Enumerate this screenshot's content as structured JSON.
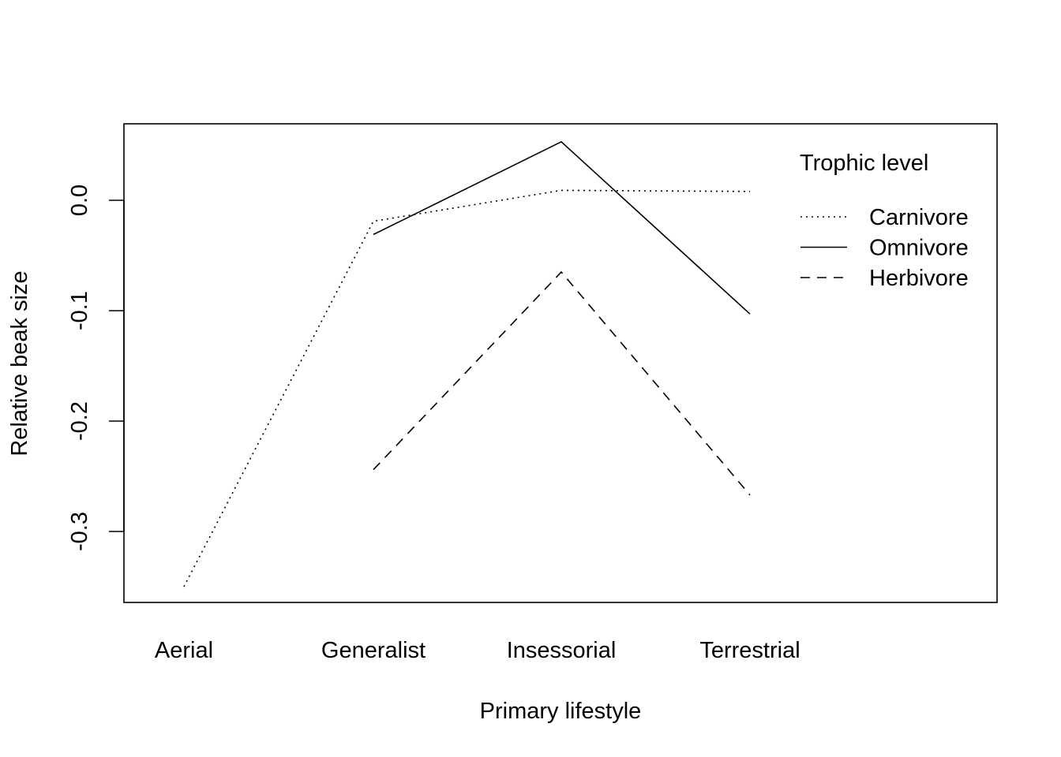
{
  "chart_data": {
    "type": "line",
    "xlabel": "Primary lifestyle",
    "ylabel": "Relative beak size",
    "categories": [
      "Aerial",
      "Generalist",
      "Insessorial",
      "Terrestrial"
    ],
    "yticks": [
      "0.0",
      "-0.1",
      "-0.2",
      "-0.3"
    ],
    "ytick_values": [
      0.0,
      -0.1,
      -0.2,
      -0.3
    ],
    "ylim": [
      -0.365,
      0.069
    ],
    "grid": false,
    "legend": {
      "title": "Trophic level",
      "position": "top-right"
    },
    "series": [
      {
        "name": "Carnivore",
        "linestyle": "dotted",
        "values": [
          -0.35,
          -0.019,
          0.009,
          0.008
        ]
      },
      {
        "name": "Omnivore",
        "linestyle": "solid",
        "values": [
          null,
          -0.031,
          0.053,
          -0.103
        ]
      },
      {
        "name": "Herbivore",
        "linestyle": "dashed",
        "values": [
          null,
          -0.244,
          -0.065,
          -0.267
        ]
      }
    ]
  }
}
